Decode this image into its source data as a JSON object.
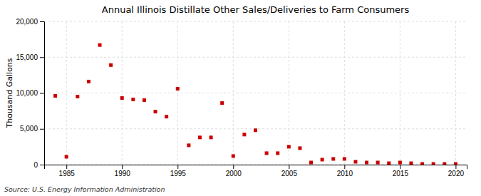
{
  "chart_data": {
    "type": "scatter",
    "title": "Annual Illinois Distillate Other Sales/Deliveries to Farm Consumers",
    "ylabel": "Thousand Gallons",
    "annotations": [
      "Source: U.S. Energy Information Administration"
    ],
    "color": "#cc0000",
    "marker": "square",
    "grid": true,
    "xlim": [
      1983,
      2021
    ],
    "ylim": [
      0,
      20000
    ],
    "xticks": [
      1985,
      1990,
      1995,
      2000,
      2005,
      2010,
      2015,
      2020
    ],
    "yticks": [
      0,
      {
        "value": 5000,
        "label": "5,000"
      },
      {
        "value": 10000,
        "label": "10,000"
      },
      {
        "value": 15000,
        "label": "15,000"
      },
      {
        "value": 20000,
        "label": "20,000"
      }
    ],
    "x": [
      1984,
      1985,
      1986,
      1987,
      1988,
      1989,
      1990,
      1991,
      1992,
      1993,
      1994,
      1995,
      1996,
      1997,
      1998,
      1999,
      2000,
      2001,
      2002,
      2003,
      2004,
      2005,
      2006,
      2007,
      2008,
      2009,
      2010,
      2011,
      2012,
      2013,
      2014,
      2015,
      2016,
      2017,
      2018,
      2019,
      2020
    ],
    "values": [
      9600,
      1100,
      9500,
      11600,
      16700,
      13900,
      9300,
      9100,
      9000,
      7400,
      6700,
      10600,
      2700,
      3800,
      3800,
      8600,
      1200,
      4200,
      4800,
      1600,
      1600,
      2500,
      2300,
      300,
      700,
      800,
      800,
      400,
      300,
      300,
      200,
      300,
      200,
      100,
      100,
      100,
      100
    ]
  }
}
